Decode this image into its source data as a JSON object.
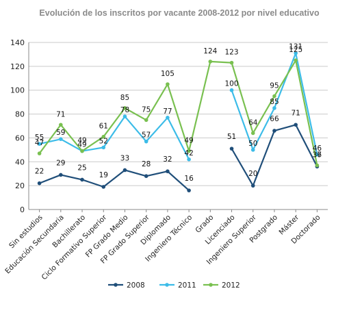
{
  "chart_data": {
    "type": "line",
    "title": "Evolución de los inscritos por vacante 2008-2012 por nivel educativo",
    "xlabel": "",
    "ylabel": "",
    "ylim": [
      0,
      140
    ],
    "yticks": [
      0,
      20,
      40,
      60,
      80,
      100,
      120,
      140
    ],
    "grid": true,
    "legend_position": "bottom",
    "categories": [
      "Sin estudios",
      "Educación Secundaria",
      "Bachillerato",
      "Ciclo Formativo Superior",
      "FP Grado Medio",
      "FP Grado Superior",
      "Diplomado",
      "Ingeniero Técnico",
      "Grado",
      "Licenciado",
      "Ingeniero Superior",
      "Postgrado",
      "Máster",
      "Doctorado"
    ],
    "series": [
      {
        "name": "2008",
        "color": "#1f4e79",
        "values": [
          22,
          29,
          25,
          19,
          33,
          28,
          32,
          16,
          null,
          51,
          20,
          66,
          71,
          36
        ]
      },
      {
        "name": "2011",
        "color": "#3cbce8",
        "values": [
          55,
          59,
          49,
          52,
          78,
          57,
          77,
          42,
          null,
          100,
          50,
          85,
          131,
          46
        ]
      },
      {
        "name": "2012",
        "color": "#79c050",
        "values": [
          47,
          71,
          49,
          61,
          85,
          75,
          105,
          49,
          124,
          123,
          64,
          95,
          125,
          37
        ]
      }
    ]
  }
}
